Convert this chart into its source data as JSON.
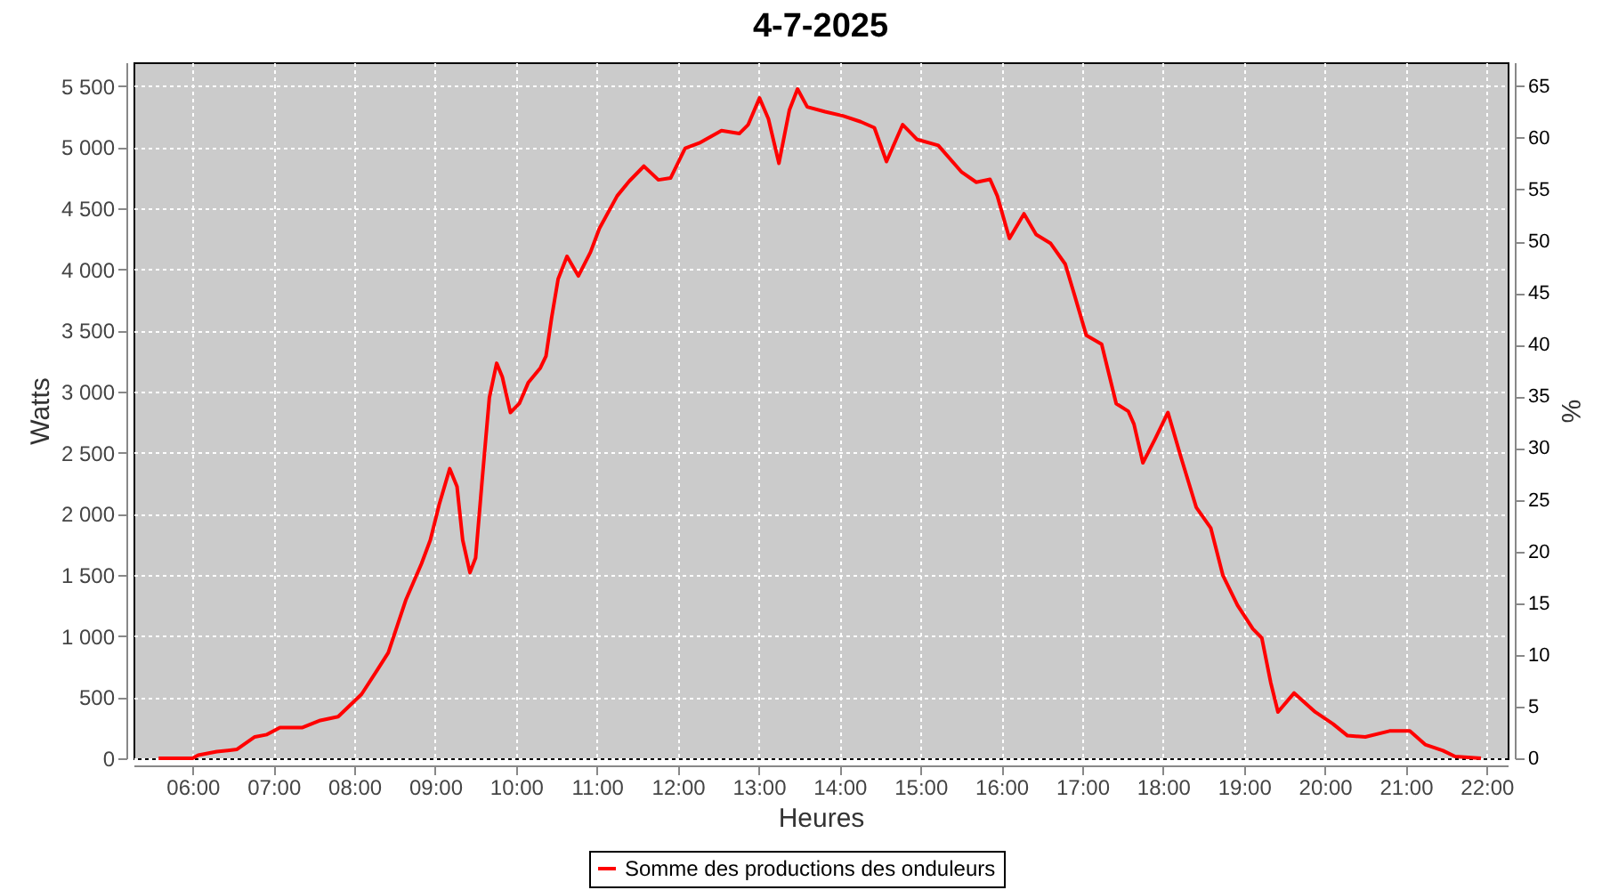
{
  "chart_data": {
    "type": "line",
    "title": "4-7-2025",
    "xlabel": "Heures",
    "ylabel": "Watts",
    "y2label": "%",
    "xlim": [
      5.27,
      22.26
    ],
    "xticks": [
      {
        "value": 6,
        "label": "06:00"
      },
      {
        "value": 7,
        "label": "07:00"
      },
      {
        "value": 8,
        "label": "08:00"
      },
      {
        "value": 9,
        "label": "09:00"
      },
      {
        "value": 10,
        "label": "10:00"
      },
      {
        "value": 11,
        "label": "11:00"
      },
      {
        "value": 12,
        "label": "12:00"
      },
      {
        "value": 13,
        "label": "13:00"
      },
      {
        "value": 14,
        "label": "14:00"
      },
      {
        "value": 15,
        "label": "15:00"
      },
      {
        "value": 16,
        "label": "16:00"
      },
      {
        "value": 17,
        "label": "17:00"
      },
      {
        "value": 18,
        "label": "18:00"
      },
      {
        "value": 19,
        "label": "19:00"
      },
      {
        "value": 20,
        "label": "20:00"
      },
      {
        "value": 21,
        "label": "21:00"
      },
      {
        "value": 22,
        "label": "22:00"
      }
    ],
    "ylim": [
      0,
      5694
    ],
    "yticks": [
      0,
      500,
      {
        "value": 1000,
        "label": "1 000"
      },
      {
        "value": 1500,
        "label": "1 500"
      },
      {
        "value": 2000,
        "label": "2 000"
      },
      {
        "value": 2500,
        "label": "2 500"
      },
      {
        "value": 3000,
        "label": "3 000"
      },
      {
        "value": 3500,
        "label": "3 500"
      },
      {
        "value": 4000,
        "label": "4 000"
      },
      {
        "value": 4500,
        "label": "4 500"
      },
      {
        "value": 5000,
        "label": "5 000"
      },
      {
        "value": 5500,
        "label": "5 500"
      }
    ],
    "y2lim": [
      0,
      67.3
    ],
    "y2ticks": [
      0,
      5,
      10,
      15,
      20,
      25,
      30,
      35,
      40,
      45,
      50,
      55,
      60,
      65
    ],
    "grid": true,
    "legend": "bottom",
    "marker": "none",
    "line_style": "solid",
    "series": [
      {
        "name": "Somme des productions des onduleurs",
        "color": "#ff0000",
        "x": [
          5.58,
          6.0,
          6.07,
          6.3,
          6.55,
          6.77,
          6.92,
          7.08,
          7.36,
          7.58,
          7.8,
          8.09,
          8.28,
          8.42,
          8.53,
          8.64,
          8.83,
          8.94,
          9.05,
          9.18,
          9.27,
          9.34,
          9.43,
          9.5,
          9.58,
          9.67,
          9.76,
          9.83,
          9.93,
          10.04,
          10.15,
          10.3,
          10.37,
          10.44,
          10.52,
          10.63,
          10.77,
          10.92,
          11.03,
          11.25,
          11.4,
          11.58,
          11.76,
          11.91,
          12.09,
          12.28,
          12.54,
          12.76,
          12.87,
          13.01,
          13.12,
          13.25,
          13.38,
          13.48,
          13.6,
          13.82,
          14.04,
          14.26,
          14.43,
          14.58,
          14.78,
          14.96,
          15.22,
          15.51,
          15.69,
          15.86,
          15.95,
          16.1,
          16.28,
          16.43,
          16.61,
          16.79,
          16.9,
          17.05,
          17.24,
          17.42,
          17.57,
          17.64,
          17.75,
          17.9,
          18.06,
          18.22,
          18.41,
          18.59,
          18.74,
          18.92,
          19.11,
          19.22,
          19.33,
          19.42,
          19.62,
          19.88,
          20.1,
          20.28,
          20.5,
          20.8,
          21.05,
          21.24,
          21.46,
          21.61,
          21.93
        ],
        "values": [
          0,
          0,
          25,
          54,
          73,
          175,
          194,
          252,
          252,
          310,
          340,
          524,
          718,
          864,
          1082,
          1300,
          1591,
          1786,
          2077,
          2369,
          2223,
          1786,
          1519,
          1640,
          2271,
          2951,
          3232,
          3120,
          2829,
          2902,
          3072,
          3193,
          3290,
          3606,
          3921,
          4106,
          3946,
          4140,
          4334,
          4601,
          4722,
          4844,
          4732,
          4747,
          4990,
          5038,
          5135,
          5111,
          5184,
          5402,
          5232,
          4868,
          5305,
          5475,
          5329,
          5290,
          5256,
          5208,
          5159,
          4882,
          5184,
          5062,
          5014,
          4795,
          4713,
          4737,
          4601,
          4252,
          4455,
          4285,
          4212,
          4043,
          3800,
          3461,
          3388,
          2902,
          2839,
          2733,
          2417,
          2611,
          2829,
          2465,
          2053,
          1883,
          1495,
          1252,
          1058,
          985,
          621,
          379,
          534,
          379,
          281,
          185,
          175,
          223,
          223,
          112,
          63,
          15,
          0
        ]
      }
    ]
  }
}
